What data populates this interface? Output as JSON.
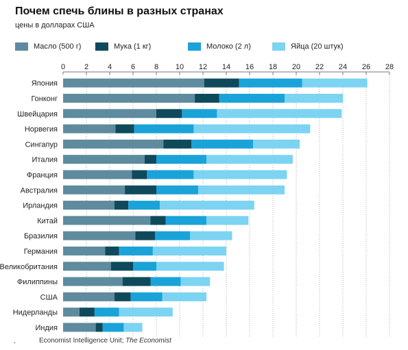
{
  "header": {
    "title": "Почем спечь блины в разных странах",
    "subtitle": "цены в долларах США"
  },
  "legend": {
    "items": [
      {
        "label": "Масло  (500 г)",
        "color": "#5e8b9e"
      },
      {
        "label": "Мука (1 кг)",
        "color": "#0f4a5c"
      },
      {
        "label": "Молоко (2 л)",
        "color": "#1aa3d9"
      },
      {
        "label": "Яйца (20 штук)",
        "color": "#7dd3f2"
      }
    ]
  },
  "footer": {
    "source_plain": "Economist Intelligence Unit; ",
    "source_italic": "The Economist",
    "mark": "•"
  },
  "chart_data": {
    "type": "bar",
    "orientation": "horizontal",
    "stacked": true,
    "title": "Почем спечь блины в разных странах",
    "subtitle": "цены в долларах США",
    "xlim": [
      0,
      28
    ],
    "xticks": [
      0,
      2,
      4,
      6,
      8,
      10,
      12,
      14,
      16,
      18,
      20,
      22,
      24,
      26,
      28
    ],
    "grid": "vertical dotted",
    "legend_position": "top",
    "categories": [
      "Япония",
      "Гонконг",
      "Швейцария",
      "Норвегия",
      "Сингапур",
      "Италия",
      "Франция",
      "Австралия",
      "Ирландия",
      "Китай",
      "Бразилия",
      "Германия",
      "Великобритания",
      "Филиппины",
      "США",
      "Нидерланды",
      "Индия"
    ],
    "series": [
      {
        "name": "Масло  (500 г)",
        "color": "#5e8b9e",
        "values": [
          12.1,
          11.3,
          8.0,
          4.5,
          8.6,
          7.0,
          5.9,
          5.3,
          4.4,
          7.5,
          6.2,
          3.6,
          4.1,
          5.1,
          4.4,
          1.4,
          2.8
        ]
      },
      {
        "name": "Мука (1 кг)",
        "color": "#0f4a5c",
        "values": [
          3.0,
          2.1,
          2.2,
          1.6,
          2.4,
          1.0,
          1.3,
          2.7,
          1.2,
          1.3,
          1.7,
          1.2,
          1.9,
          2.4,
          1.4,
          1.3,
          0.6
        ]
      },
      {
        "name": "Молоко (2 л)",
        "color": "#1aa3d9",
        "values": [
          5.4,
          5.6,
          3.0,
          5.1,
          5.3,
          4.3,
          4.0,
          3.6,
          2.7,
          3.5,
          3.0,
          2.9,
          2.0,
          2.6,
          2.7,
          2.1,
          1.8
        ]
      },
      {
        "name": "Яйца (20 штук)",
        "color": "#7dd3f2",
        "values": [
          5.6,
          5.0,
          10.7,
          10.0,
          4.0,
          7.4,
          8.0,
          7.4,
          8.1,
          3.6,
          3.6,
          6.3,
          5.8,
          2.5,
          3.8,
          4.6,
          1.6
        ]
      }
    ]
  }
}
